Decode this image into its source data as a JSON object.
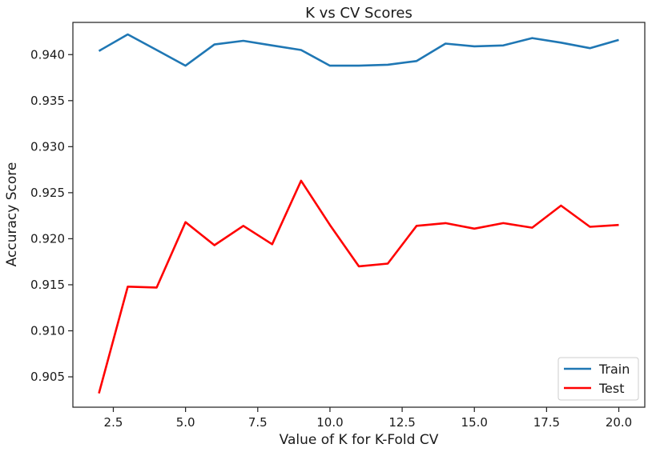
{
  "chart_data": {
    "type": "line",
    "title": "K vs CV Scores",
    "xlabel": "Value of K for K-Fold CV",
    "ylabel": "Accuracy Score",
    "xlim": [
      1.1,
      20.9
    ],
    "ylim": [
      0.9017,
      0.9435
    ],
    "xticks": [
      2.5,
      5.0,
      7.5,
      10.0,
      12.5,
      15.0,
      17.5,
      20.0
    ],
    "xtick_labels": [
      "2.5",
      "5.0",
      "7.5",
      "10.0",
      "12.5",
      "15.0",
      "17.5",
      "20.0"
    ],
    "yticks": [
      0.905,
      0.91,
      0.915,
      0.92,
      0.925,
      0.93,
      0.935,
      0.94
    ],
    "ytick_labels": [
      "0.905",
      "0.910",
      "0.915",
      "0.920",
      "0.925",
      "0.930",
      "0.935",
      "0.940"
    ],
    "grid": false,
    "legend_position": "bottom-right",
    "x": [
      2,
      3,
      4,
      5,
      6,
      7,
      8,
      9,
      10,
      11,
      12,
      13,
      14,
      15,
      16,
      17,
      18,
      19,
      20
    ],
    "series": [
      {
        "name": "Train",
        "color": "#1f77b4",
        "values": [
          0.9404,
          0.9422,
          0.9405,
          0.9388,
          0.9411,
          0.9415,
          0.941,
          0.9405,
          0.9388,
          0.9388,
          0.9389,
          0.9393,
          0.9412,
          0.9409,
          0.941,
          0.9418,
          0.9413,
          0.9407,
          0.9416
        ]
      },
      {
        "name": "Test",
        "color": "#ff0000",
        "values": [
          0.9032,
          0.9148,
          0.9147,
          0.9218,
          0.9193,
          0.9214,
          0.9194,
          0.9263,
          0.9215,
          0.917,
          0.9173,
          0.9214,
          0.9217,
          0.9211,
          0.9217,
          0.9212,
          0.9236,
          0.9213,
          0.9215
        ]
      }
    ]
  }
}
